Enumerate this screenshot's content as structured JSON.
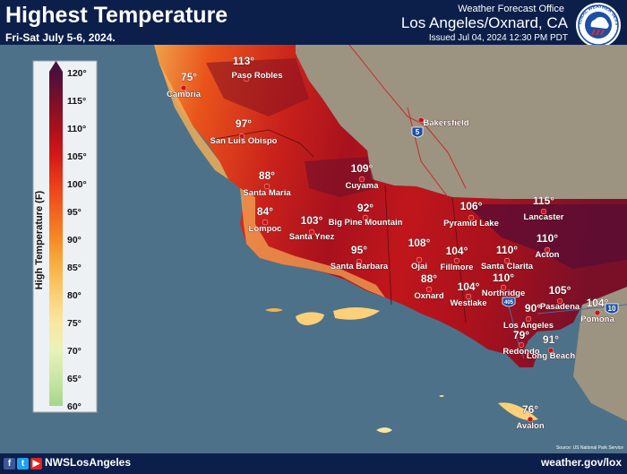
{
  "header": {
    "title": "Highest Temperature",
    "subtitle": "Fri-Sat July 5-6, 2024.",
    "office_label": "Weather Forecast Office",
    "office_name": "Los Angeles/Oxnard, CA",
    "issued": "Issued Jul 04, 2024 12:30 PM PDT"
  },
  "logo": {
    "icon": "nws-logo-icon",
    "text": "NATIONAL WEATHER SERVICE"
  },
  "legend": {
    "title": "High Temperature (F)",
    "ticks": [
      "120°",
      "115°",
      "110°",
      "105°",
      "100°",
      "95°",
      "90°",
      "85°",
      "80°",
      "75°",
      "70°",
      "65°",
      "60°"
    ],
    "colors": [
      "#4a0f3d",
      "#7a1028",
      "#a8111d",
      "#d31818",
      "#ec3d1a",
      "#f2641f",
      "#f58a26",
      "#f8b246",
      "#fbd078",
      "#fbe6a3",
      "#e9f2b8",
      "#c8e6a6",
      "#a5d78d"
    ]
  },
  "cities": [
    {
      "name": "Paso Robles",
      "temp": "113°"
    },
    {
      "name": "Cambria",
      "temp": "75°"
    },
    {
      "name": "San Luis Obispo",
      "temp": "97°"
    },
    {
      "name": "Bakersfield",
      "temp": ""
    },
    {
      "name": "Santa Maria",
      "temp": "88°"
    },
    {
      "name": "Cuyama",
      "temp": "109°"
    },
    {
      "name": "Lompoc",
      "temp": "84°"
    },
    {
      "name": "Big Pine Mountain",
      "temp": "92°"
    },
    {
      "name": "Santa Ynez",
      "temp": "103°"
    },
    {
      "name": "Santa Barbara",
      "temp": "95°"
    },
    {
      "name": "Pyramid Lake",
      "temp": "106°"
    },
    {
      "name": "Lancaster",
      "temp": "115°"
    },
    {
      "name": "Ojai",
      "temp": "108°"
    },
    {
      "name": "Fillmore",
      "temp": "104°"
    },
    {
      "name": "Santa Clarita",
      "temp": "110°"
    },
    {
      "name": "Acton",
      "temp": "110°"
    },
    {
      "name": "Oxnard",
      "temp": "88°"
    },
    {
      "name": "Westlake",
      "temp": "104°"
    },
    {
      "name": "Northridge",
      "temp": "110°"
    },
    {
      "name": "Pasadena",
      "temp": "105°"
    },
    {
      "name": "Pomona",
      "temp": "104°"
    },
    {
      "name": "Los Angeles",
      "temp": "90°"
    },
    {
      "name": "Redondo",
      "temp": "79°"
    },
    {
      "name": "Long Beach",
      "temp": "91°"
    },
    {
      "name": "Avalon",
      "temp": "76°"
    }
  ],
  "highways": [
    "5",
    "405",
    "10"
  ],
  "source_note": "Source: US National Park Service",
  "footer": {
    "social_icons": [
      "facebook-icon",
      "twitter-icon",
      "youtube-icon"
    ],
    "handle": "NWSLosAngeles",
    "url": "weather.gov/lox"
  },
  "colors": {
    "ocean": "#4d7189",
    "land_outside": "#9c9481",
    "brand": "#0c1f4a"
  }
}
